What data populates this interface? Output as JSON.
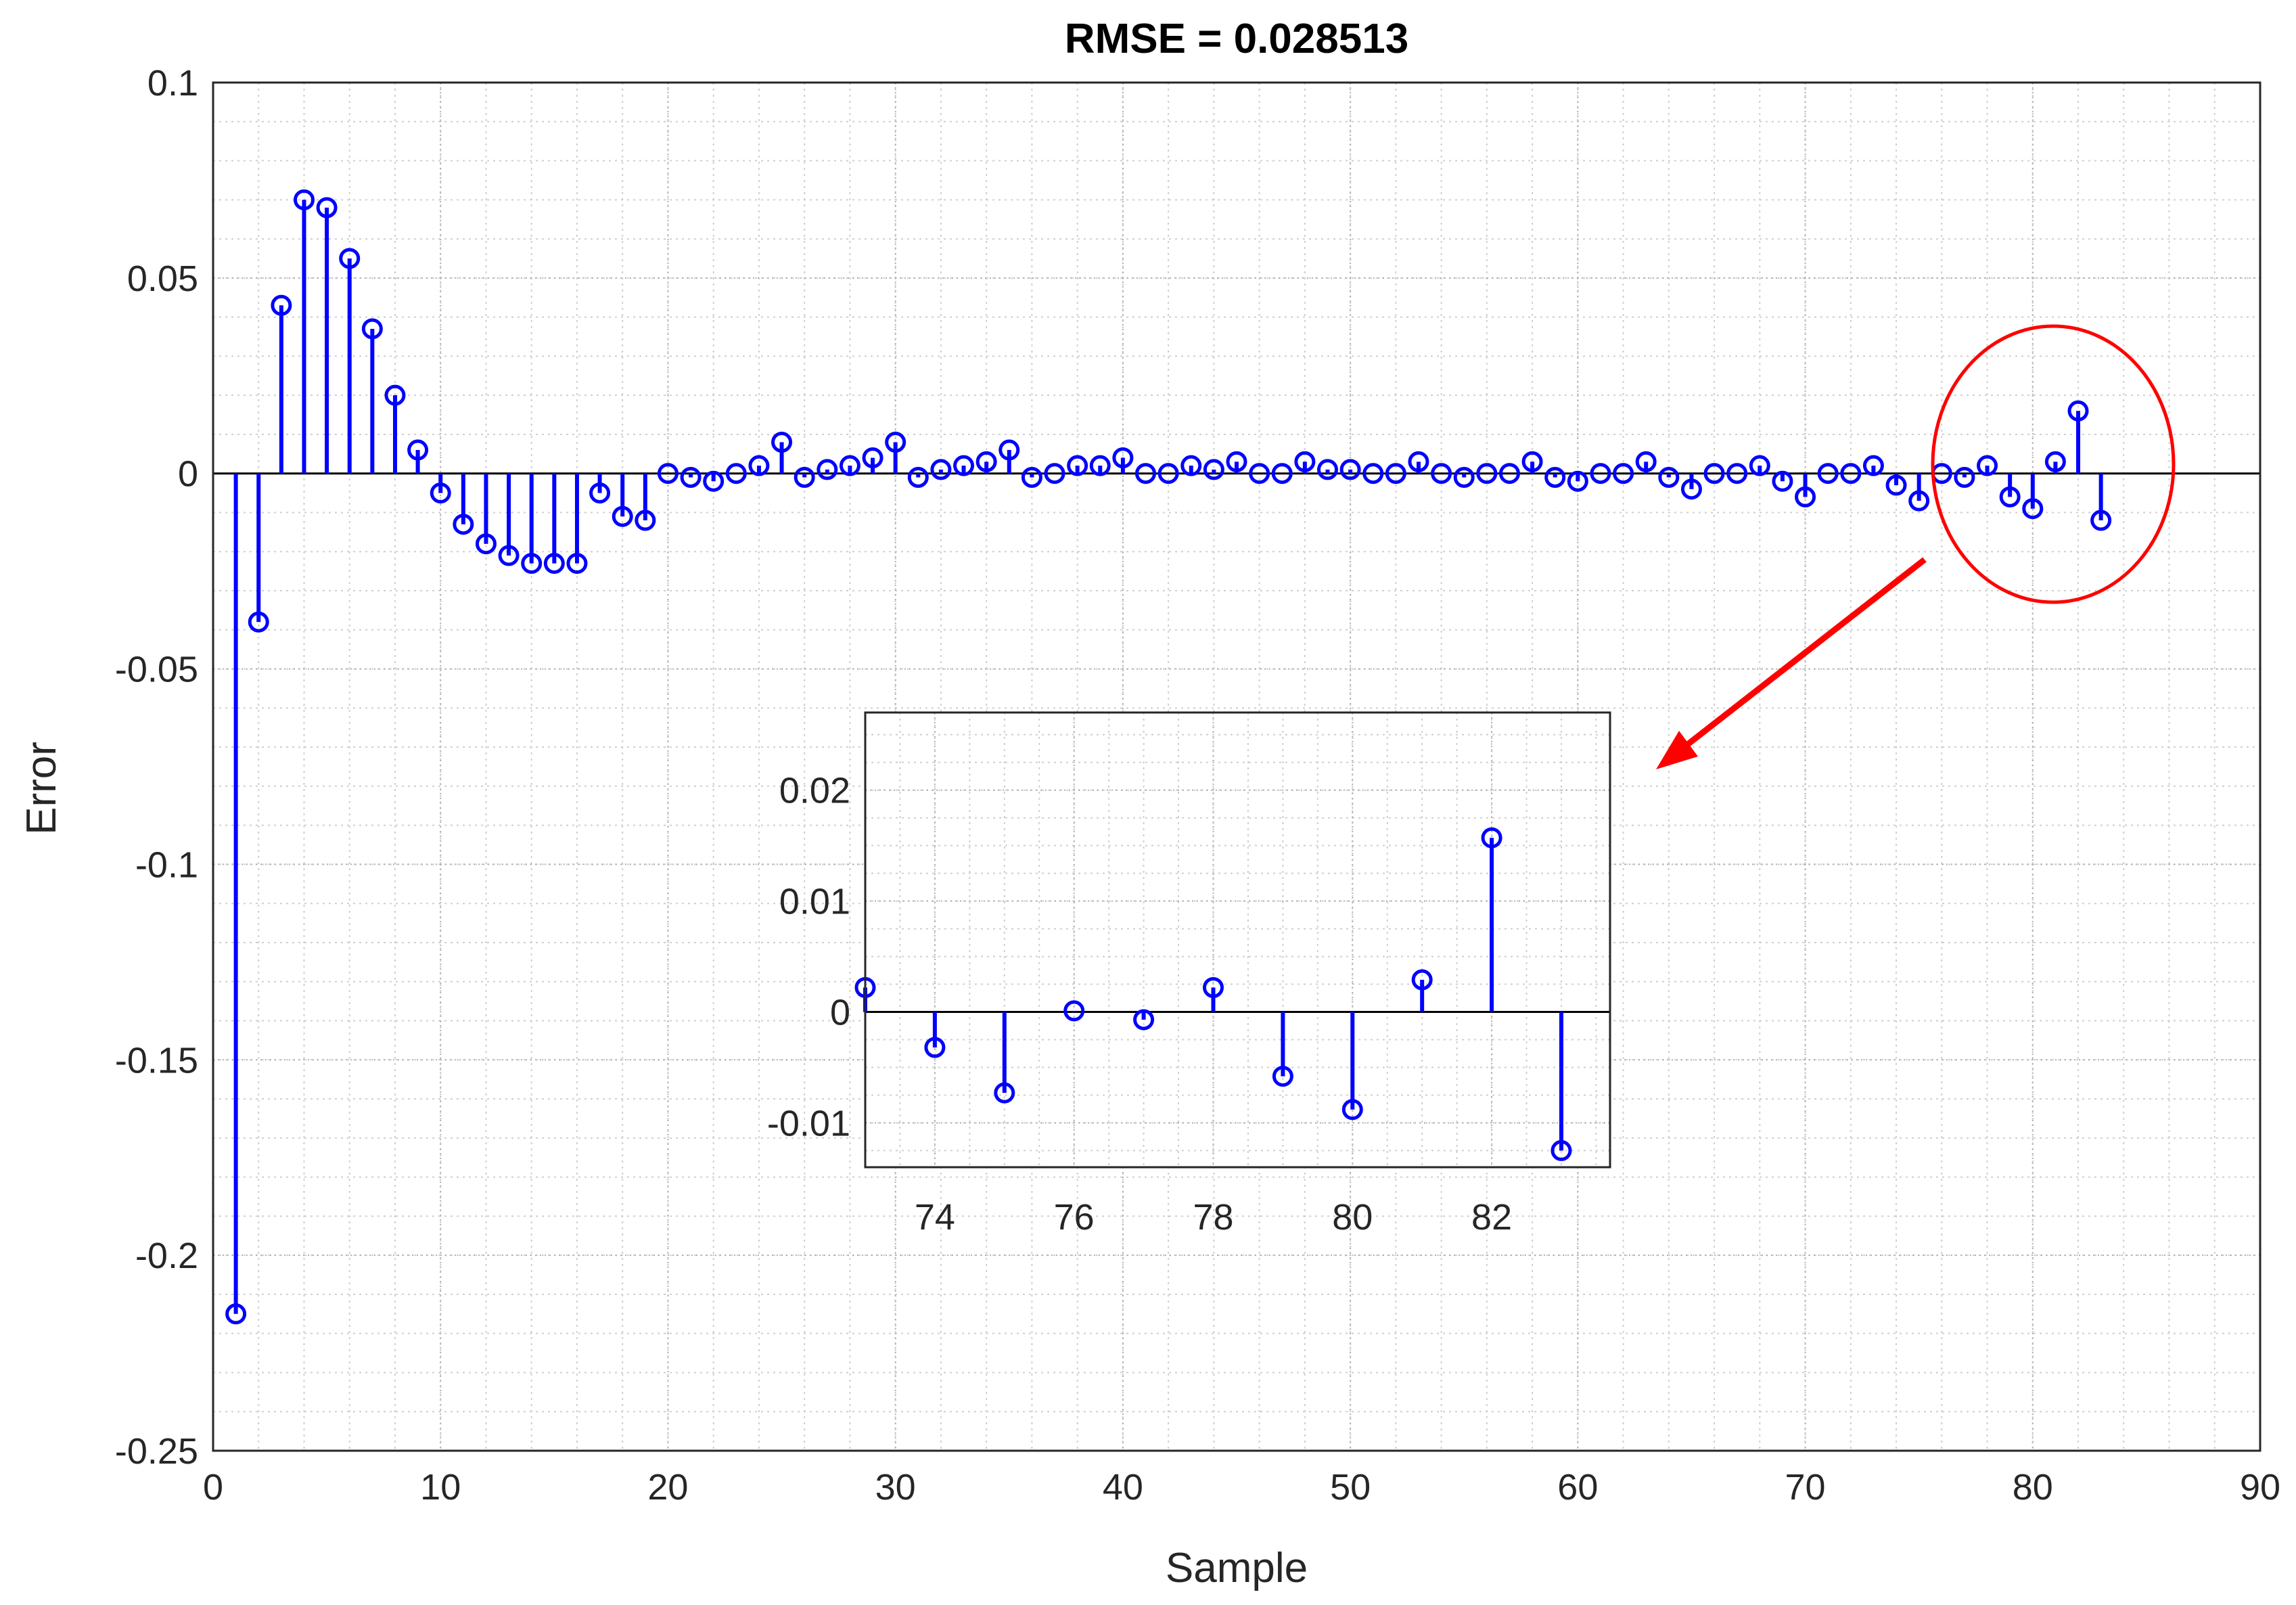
{
  "chart_data": [
    {
      "type": "stem",
      "title": "RMSE = 0.028513",
      "xlabel": "Sample",
      "ylabel": "Error",
      "xlim": [
        0,
        90
      ],
      "ylim": [
        -0.25,
        0.1
      ],
      "xticks": [
        0,
        10,
        20,
        30,
        40,
        50,
        60,
        70,
        80,
        90
      ],
      "yticks": [
        0.1,
        0.05,
        0,
        -0.05,
        -0.1,
        -0.15,
        -0.2,
        -0.25
      ],
      "xtick_labels": [
        "0",
        "10",
        "20",
        "30",
        "40",
        "50",
        "60",
        "70",
        "80",
        "90"
      ],
      "ytick_labels": [
        "0.1",
        "0.05",
        "0",
        "-0.05",
        "-0.1",
        "-0.15",
        "-0.2",
        "-0.25"
      ],
      "grid": true,
      "minor_grid": true,
      "x": [
        1,
        2,
        3,
        4,
        5,
        6,
        7,
        8,
        9,
        10,
        11,
        12,
        13,
        14,
        15,
        16,
        17,
        18,
        19,
        20,
        21,
        22,
        23,
        24,
        25,
        26,
        27,
        28,
        29,
        30,
        31,
        32,
        33,
        34,
        35,
        36,
        37,
        38,
        39,
        40,
        41,
        42,
        43,
        44,
        45,
        46,
        47,
        48,
        49,
        50,
        51,
        52,
        53,
        54,
        55,
        56,
        57,
        58,
        59,
        60,
        61,
        62,
        63,
        64,
        65,
        66,
        67,
        68,
        69,
        70,
        71,
        72,
        73,
        74,
        75,
        76,
        77,
        78,
        79,
        80,
        81,
        82,
        83
      ],
      "y": [
        -0.215,
        -0.038,
        0.043,
        0.07,
        0.068,
        0.055,
        0.037,
        0.02,
        0.006,
        -0.005,
        -0.013,
        -0.018,
        -0.021,
        -0.023,
        -0.023,
        -0.023,
        -0.005,
        -0.011,
        -0.012,
        0.0,
        -0.001,
        -0.002,
        0.0,
        0.002,
        0.008,
        -0.001,
        0.001,
        0.002,
        0.004,
        0.008,
        -0.001,
        0.001,
        0.002,
        0.003,
        0.006,
        -0.001,
        0.0,
        0.002,
        0.002,
        0.004,
        0.0,
        0.0,
        0.002,
        0.001,
        0.003,
        0.0,
        0.0,
        0.003,
        0.001,
        0.001,
        0.0,
        0.0,
        0.003,
        0.0,
        -0.001,
        0.0,
        0.0,
        0.003,
        -0.001,
        -0.002,
        0.0,
        0.0,
        0.003,
        -0.001,
        -0.004,
        0.0,
        0.0,
        0.002,
        -0.002,
        -0.006,
        0.0,
        0.0,
        0.002,
        -0.003,
        -0.007,
        0.0,
        -0.001,
        0.002,
        -0.006,
        -0.009,
        0.003,
        0.016,
        -0.012
      ],
      "color": "#0000ff",
      "annotation": {
        "circle_color": "#ff0000",
        "arrow_color": "#ff0000"
      }
    },
    {
      "type": "stem",
      "role": "inset",
      "xlim": [
        73,
        83.7
      ],
      "ylim": [
        -0.014,
        0.027
      ],
      "xticks": [
        74,
        76,
        78,
        80,
        82
      ],
      "yticks": [
        0.02,
        0.01,
        0,
        -0.01
      ],
      "xtick_labels": [
        "74",
        "76",
        "78",
        "80",
        "82"
      ],
      "ytick_labels": [
        "0.02",
        "0.01",
        "0",
        "-0.01"
      ],
      "grid": true,
      "minor_grid": true,
      "x": [
        73,
        74,
        75,
        76,
        77,
        78,
        79,
        80,
        81,
        82,
        83
      ],
      "y": [
        0.0022,
        -0.0032,
        -0.0073,
        0.0001,
        -0.0007,
        0.0022,
        -0.0058,
        -0.0088,
        0.0029,
        0.0157,
        -0.0125
      ],
      "color": "#0000ff"
    }
  ]
}
